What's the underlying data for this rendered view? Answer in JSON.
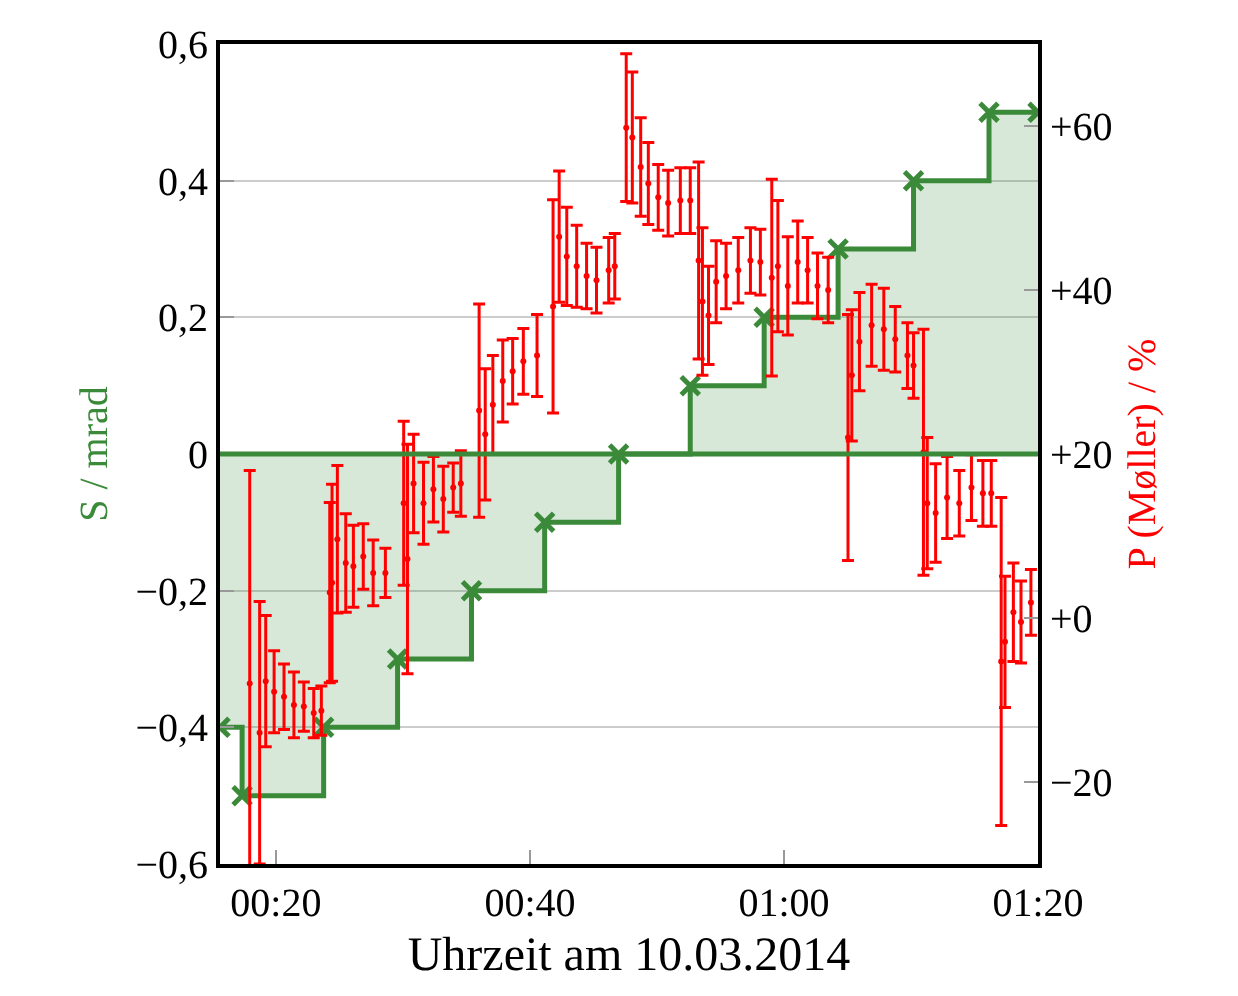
{
  "chart_data": {
    "type": "step",
    "xlabel": "Uhrzeit am 10.03.2014",
    "ylabel": "S / mrad",
    "y2label": "P (Møller) / %",
    "xlim": [
      0.26,
      1.3333
    ],
    "xticks": [
      {
        "value": 0.3333,
        "label": "00:20"
      },
      {
        "value": 0.6667,
        "label": "00:40"
      },
      {
        "value": 1.0,
        "label": "01:00"
      },
      {
        "value": 1.3333,
        "label": "01:20"
      }
    ],
    "ylim": [
      -0.6,
      0.6
    ],
    "yticks": [
      {
        "value": -0.6,
        "label": "−0,6"
      },
      {
        "value": -0.4,
        "label": "−0,4"
      },
      {
        "value": -0.2,
        "label": "−0,2"
      },
      0,
      {
        "value": 0.2,
        "label": "0,2"
      },
      {
        "value": 0.4,
        "label": "0,4"
      },
      {
        "value": 0.6,
        "label": "0,6"
      }
    ],
    "y2lim": [
      -30,
      70
    ],
    "y2ticks": [
      {
        "value": -20,
        "label": "−20"
      },
      {
        "value": 0,
        "label": "+0"
      },
      {
        "value": 20,
        "label": "+20"
      },
      {
        "value": 40,
        "label": "+40"
      },
      {
        "value": 60,
        "label": "+60"
      }
    ],
    "grid": "y",
    "ref_lines": [
      {
        "axis": "y",
        "value": 0,
        "color": "#3a8a3a"
      }
    ],
    "series": [
      {
        "color": "#3a8a3a",
        "marker": "cross",
        "x": [
          0.26,
          0.289,
          0.396,
          0.493,
          0.59,
          0.686,
          0.783,
          0.877,
          0.974,
          1.071,
          1.17,
          1.269,
          1.3333
        ],
        "values": [
          -0.4,
          -0.5,
          -0.4,
          -0.3,
          -0.2,
          -0.1,
          0,
          0.1,
          0.2,
          0.3,
          0.4,
          0.5,
          0.5
        ]
      },
      {
        "type": "scatter",
        "axis": "y2",
        "color": "#ff0000",
        "x": [
          0.299,
          0.312,
          0.32,
          0.331,
          0.344,
          0.357,
          0.37,
          0.383,
          0.393,
          0.404,
          0.407,
          0.414,
          0.425,
          0.435,
          0.448,
          0.461,
          0.477,
          0.501,
          0.506,
          0.514,
          0.527,
          0.54,
          0.553,
          0.566,
          0.576,
          0.6,
          0.608,
          0.618,
          0.631,
          0.644,
          0.658,
          0.676,
          0.697,
          0.705,
          0.715,
          0.728,
          0.741,
          0.754,
          0.77,
          0.778,
          0.793,
          0.801,
          0.812,
          0.822,
          0.835,
          0.848,
          0.864,
          0.877,
          0.888,
          0.893,
          0.901,
          0.911,
          0.924,
          0.94,
          0.956,
          0.969,
          0.984,
          0.992,
          1.005,
          1.018,
          1.031,
          1.044,
          1.058,
          1.084,
          1.089,
          1.099,
          1.115,
          1.131,
          1.146,
          1.162,
          1.17,
          1.183,
          1.188,
          1.199,
          1.214,
          1.23,
          1.246,
          1.261,
          1.272,
          1.285,
          1.29,
          1.301,
          1.311,
          1.324
        ],
        "values": [
          -8,
          -14,
          -7.7,
          -9,
          -9.6,
          -10.6,
          -10.8,
          -11.6,
          -11.3,
          3.1,
          4.3,
          9.6,
          6.7,
          6.3,
          7.5,
          5.5,
          5.5,
          14,
          7.2,
          16.4,
          14,
          15.7,
          14.5,
          15.9,
          16.4,
          25.3,
          22.4,
          26,
          28.9,
          30.1,
          31.3,
          32,
          38,
          46.5,
          44.1,
          42.9,
          41.7,
          41.2,
          42.4,
          42.9,
          59.8,
          58.6,
          55,
          53,
          51.3,
          50.6,
          50.9,
          50.9,
          43.6,
          38.6,
          36.9,
          41,
          41.7,
          42.4,
          43.6,
          43.4,
          41.5,
          42.9,
          40.5,
          43.4,
          42.4,
          40.5,
          40,
          22,
          29.6,
          33.7,
          35.7,
          35.2,
          34,
          32,
          30.8,
          20.2,
          14,
          12.8,
          14.7,
          14,
          15.9,
          15.2,
          15.2,
          -5.3,
          -2.9,
          0.7,
          -0.5,
          1.9
        ],
        "errors": [
          26,
          16,
          8,
          5,
          4,
          4,
          3,
          3,
          3,
          11,
          12,
          9,
          6,
          5,
          4,
          4,
          3,
          10,
          14,
          6,
          5,
          4,
          4,
          3,
          4,
          13,
          8,
          6,
          5,
          4,
          4,
          5,
          13,
          8,
          6,
          5,
          4,
          4,
          4,
          4,
          9,
          8,
          6,
          5,
          4,
          4,
          4,
          4,
          12,
          9,
          6,
          5,
          4,
          4,
          4,
          4,
          12,
          8,
          6,
          5,
          4,
          4,
          4,
          15,
          8,
          6,
          5,
          5,
          4,
          4,
          4,
          15,
          8,
          6,
          5,
          4,
          4,
          4,
          4,
          20,
          8,
          6,
          5,
          4
        ]
      }
    ]
  }
}
